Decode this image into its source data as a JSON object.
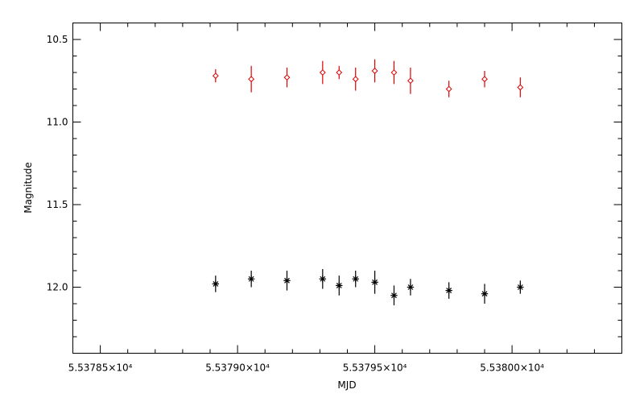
{
  "chart_data": {
    "type": "scatter",
    "title": "",
    "xlabel": "MJD",
    "ylabel": "Magnitude",
    "xlim": [
      53784.0,
      53804.0
    ],
    "ylim": [
      12.4,
      10.4
    ],
    "y_inverted": true,
    "grid": false,
    "x_tick_labels": [
      {
        "value": 53785,
        "label": "5.53785×10⁴"
      },
      {
        "value": 53790,
        "label": "5.53790×10⁴"
      },
      {
        "value": 53795,
        "label": "5.53795×10⁴"
      },
      {
        "value": 53800,
        "label": "5.53800×10⁴"
      }
    ],
    "y_tick_labels": [
      {
        "value": 10.5,
        "label": "10.5"
      },
      {
        "value": 11.0,
        "label": "11.0"
      },
      {
        "value": 11.5,
        "label": "11.5"
      },
      {
        "value": 12.0,
        "label": "12.0"
      }
    ],
    "series": [
      {
        "marker": "diamond",
        "color": "#e00000",
        "points": [
          {
            "x": 53789.2,
            "y": 10.72,
            "err": 0.04
          },
          {
            "x": 53790.5,
            "y": 10.74,
            "err": 0.08
          },
          {
            "x": 53791.8,
            "y": 10.73,
            "err": 0.06
          },
          {
            "x": 53793.1,
            "y": 10.7,
            "err": 0.07
          },
          {
            "x": 53793.7,
            "y": 10.7,
            "err": 0.04
          },
          {
            "x": 53794.3,
            "y": 10.74,
            "err": 0.07
          },
          {
            "x": 53795.0,
            "y": 10.69,
            "err": 0.07
          },
          {
            "x": 53795.7,
            "y": 10.7,
            "err": 0.07
          },
          {
            "x": 53796.3,
            "y": 10.75,
            "err": 0.08
          },
          {
            "x": 53797.7,
            "y": 10.8,
            "err": 0.05
          },
          {
            "x": 53799.0,
            "y": 10.74,
            "err": 0.05
          },
          {
            "x": 53800.3,
            "y": 10.79,
            "err": 0.06
          }
        ]
      },
      {
        "marker": "asterisk",
        "color": "#000000",
        "points": [
          {
            "x": 53789.2,
            "y": 11.98,
            "err": 0.05
          },
          {
            "x": 53790.5,
            "y": 11.95,
            "err": 0.05
          },
          {
            "x": 53791.8,
            "y": 11.96,
            "err": 0.06
          },
          {
            "x": 53793.1,
            "y": 11.95,
            "err": 0.06
          },
          {
            "x": 53793.7,
            "y": 11.99,
            "err": 0.06
          },
          {
            "x": 53794.3,
            "y": 11.95,
            "err": 0.05
          },
          {
            "x": 53795.0,
            "y": 11.97,
            "err": 0.07
          },
          {
            "x": 53795.7,
            "y": 12.05,
            "err": 0.06
          },
          {
            "x": 53796.3,
            "y": 12.0,
            "err": 0.05
          },
          {
            "x": 53797.7,
            "y": 12.02,
            "err": 0.05
          },
          {
            "x": 53799.0,
            "y": 12.04,
            "err": 0.06
          },
          {
            "x": 53800.3,
            "y": 12.0,
            "err": 0.04
          }
        ]
      }
    ]
  }
}
